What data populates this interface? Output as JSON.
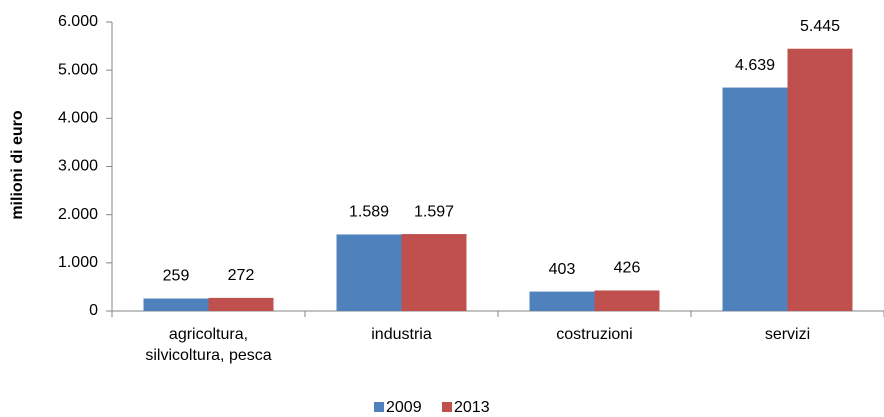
{
  "chart_data": {
    "type": "bar",
    "y_label": "milioni di euro",
    "categories": [
      "agricoltura, silvicoltura, pesca",
      "industria",
      "costruzioni",
      "servizi"
    ],
    "series": [
      {
        "name": "2009",
        "color": "#4f81bd",
        "values": [
          259,
          1589,
          403,
          4639
        ],
        "value_labels": [
          "259",
          "1.589",
          "403",
          "4.639"
        ]
      },
      {
        "name": "2013",
        "color": "#c0504d",
        "values": [
          272,
          1597,
          426,
          5445
        ],
        "value_labels": [
          "272",
          "1.597",
          "426",
          "5.445"
        ]
      }
    ],
    "ylim": [
      0,
      6000
    ],
    "yticks": [
      0,
      {
        "value": 1000,
        "label": "1.000"
      },
      {
        "value": 2000,
        "label": "2.000"
      },
      {
        "value": 3000,
        "label": "3.000"
      },
      {
        "value": 4000,
        "label": "4.000"
      },
      {
        "value": 5000,
        "label": "5.000"
      },
      {
        "value": 6000,
        "label": "6.000"
      }
    ],
    "grid": false,
    "legend": "bottom"
  }
}
